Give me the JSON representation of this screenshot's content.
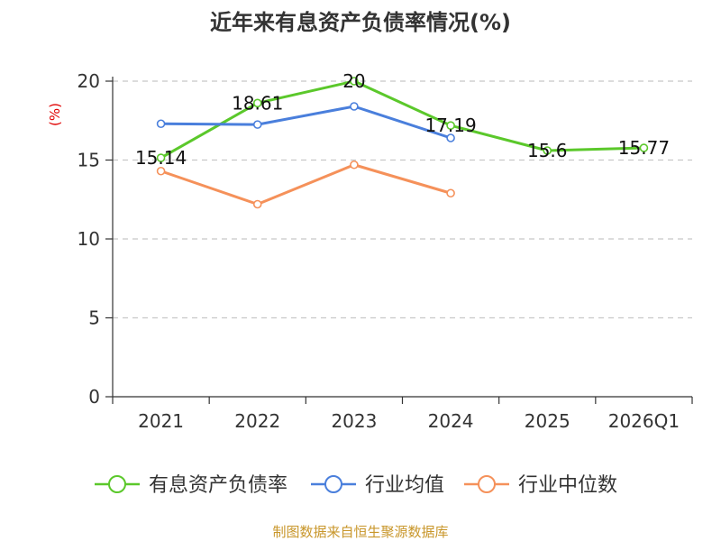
{
  "chart_data": {
    "type": "line",
    "title": "近年来有息资产负债率情况(%)",
    "ylabel": "(%)",
    "xlabel": "",
    "categories": [
      "2021",
      "2022",
      "2023",
      "2024",
      "2025",
      "2026Q1"
    ],
    "ylim": [
      0,
      20
    ],
    "yticks": [
      0,
      5,
      10,
      15,
      20
    ],
    "grid": true,
    "legend_position": "bottom",
    "series": [
      {
        "name": "有息资产负债率",
        "color": "#5bc82b",
        "values": [
          15.14,
          18.61,
          20,
          17.19,
          15.6,
          15.77
        ],
        "labels": [
          "15.14",
          "18.61",
          "20",
          "17.19",
          "15.6",
          "15.77"
        ]
      },
      {
        "name": "行业均值",
        "color": "#4a7fdc",
        "values": [
          17.3,
          17.25,
          18.4,
          16.4,
          null,
          null
        ]
      },
      {
        "name": "行业中位数",
        "color": "#f5915a",
        "values": [
          14.3,
          12.2,
          14.7,
          12.9,
          null,
          null
        ]
      }
    ]
  },
  "source": "制图数据来自恒生聚源数据库"
}
